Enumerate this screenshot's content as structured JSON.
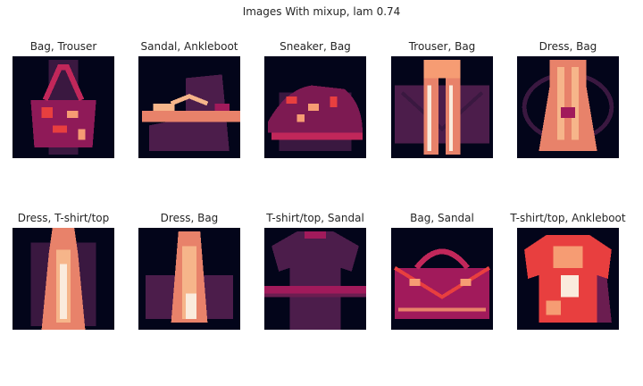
{
  "figure": {
    "title": "Images With mixup, lam 0.74",
    "colormap": [
      "#03051a",
      "#4c1d4b",
      "#a11a5b",
      "#e83f3f",
      "#f69c73",
      "#faebdd"
    ]
  },
  "grid": [
    {
      "label": "Bag, Trouser",
      "primary": "bag",
      "secondary": "trouser"
    },
    {
      "label": "Sandal, Ankleboot",
      "primary": "sandal",
      "secondary": "ankleboot"
    },
    {
      "label": "Sneaker, Bag",
      "primary": "sneaker",
      "secondary": "bag"
    },
    {
      "label": "Trouser, Bag",
      "primary": "trouser",
      "secondary": "bag"
    },
    {
      "label": "Dress, Bag",
      "primary": "dress",
      "secondary": "bag"
    },
    {
      "label": "Dress, T-shirt/top",
      "primary": "dress",
      "secondary": "tshirt"
    },
    {
      "label": "Dress, Bag",
      "primary": "dress",
      "secondary": "bag"
    },
    {
      "label": "T-shirt/top, Sandal",
      "primary": "tshirt",
      "secondary": "sandal"
    },
    {
      "label": "Bag, Sandal",
      "primary": "bag",
      "secondary": "sandal"
    },
    {
      "label": "T-shirt/top, Ankleboot",
      "primary": "tshirt",
      "secondary": "ankleboot"
    }
  ]
}
